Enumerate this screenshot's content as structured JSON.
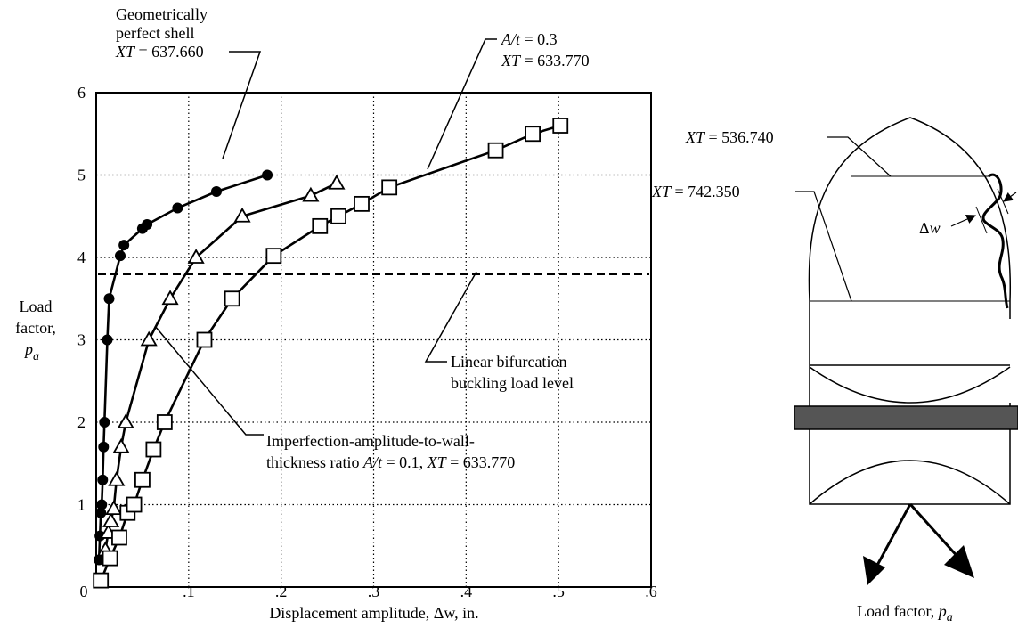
{
  "chart_data": {
    "type": "line",
    "xlabel": "Displacement amplitude, Δw, in.",
    "ylabel": [
      "Load",
      "factor,",
      "p",
      "a"
    ],
    "xlim": [
      0,
      0.6
    ],
    "ylim": [
      0,
      6
    ],
    "x_ticks": [
      "0",
      ".1",
      ".2",
      ".3",
      ".4",
      ".5",
      ".6"
    ],
    "y_ticks": [
      "1",
      "2",
      "3",
      "4",
      "5",
      "6"
    ],
    "grid": true,
    "reference_line": {
      "y": 3.8,
      "label": [
        "Linear bifurcation",
        "buckling load level"
      ]
    },
    "series": [
      {
        "marker": "circle",
        "points": [
          [
            0.003,
            0.33
          ],
          [
            0.004,
            0.62
          ],
          [
            0.005,
            0.9
          ],
          [
            0.006,
            1.0
          ],
          [
            0.007,
            1.3
          ],
          [
            0.008,
            1.7
          ],
          [
            0.009,
            2.0
          ],
          [
            0.012,
            3.0
          ],
          [
            0.014,
            3.5
          ],
          [
            0.026,
            4.02
          ],
          [
            0.03,
            4.15
          ],
          [
            0.05,
            4.35
          ],
          [
            0.055,
            4.4
          ],
          [
            0.088,
            4.6
          ],
          [
            0.13,
            4.8
          ],
          [
            0.185,
            5.0
          ]
        ]
      },
      {
        "marker": "triangle",
        "points": [
          [
            0.01,
            0.45
          ],
          [
            0.013,
            0.66
          ],
          [
            0.016,
            0.8
          ],
          [
            0.019,
            0.95
          ],
          [
            0.022,
            1.3
          ],
          [
            0.027,
            1.7
          ],
          [
            0.032,
            2.0
          ],
          [
            0.057,
            3.0
          ],
          [
            0.08,
            3.5
          ],
          [
            0.108,
            4.0
          ],
          [
            0.158,
            4.5
          ],
          [
            0.232,
            4.75
          ],
          [
            0.26,
            4.9
          ]
        ]
      },
      {
        "marker": "square",
        "points": [
          [
            0.005,
            0.08
          ],
          [
            0.015,
            0.35
          ],
          [
            0.025,
            0.6
          ],
          [
            0.034,
            0.9
          ],
          [
            0.041,
            1.0
          ],
          [
            0.05,
            1.3
          ],
          [
            0.062,
            1.67
          ],
          [
            0.074,
            2.0
          ],
          [
            0.117,
            3.0
          ],
          [
            0.147,
            3.5
          ],
          [
            0.192,
            4.02
          ],
          [
            0.242,
            4.38
          ],
          [
            0.262,
            4.5
          ],
          [
            0.287,
            4.65
          ],
          [
            0.317,
            4.85
          ],
          [
            0.432,
            5.3
          ],
          [
            0.472,
            5.5
          ],
          [
            0.502,
            5.6
          ]
        ]
      }
    ],
    "annotations": {
      "perfect_shell": [
        "Geometrically",
        "perfect shell",
        "XT",
        " = 637.660"
      ],
      "at03": [
        "A/t",
        " = 0.3",
        "XT",
        " = 633.770"
      ],
      "at01": [
        "Imperfection-amplitude-to-wall-",
        "thickness ratio ",
        "A/t",
        " = 0.1, ",
        "XT",
        " = 633.770"
      ]
    }
  },
  "diagram": {
    "xt_upper": [
      "XT",
      " = 536.740"
    ],
    "xt_lower": [
      "XT",
      " = 742.350"
    ],
    "dw": [
      "Δ",
      "w"
    ],
    "caption": [
      "Load factor, ",
      "p",
      "a"
    ]
  }
}
